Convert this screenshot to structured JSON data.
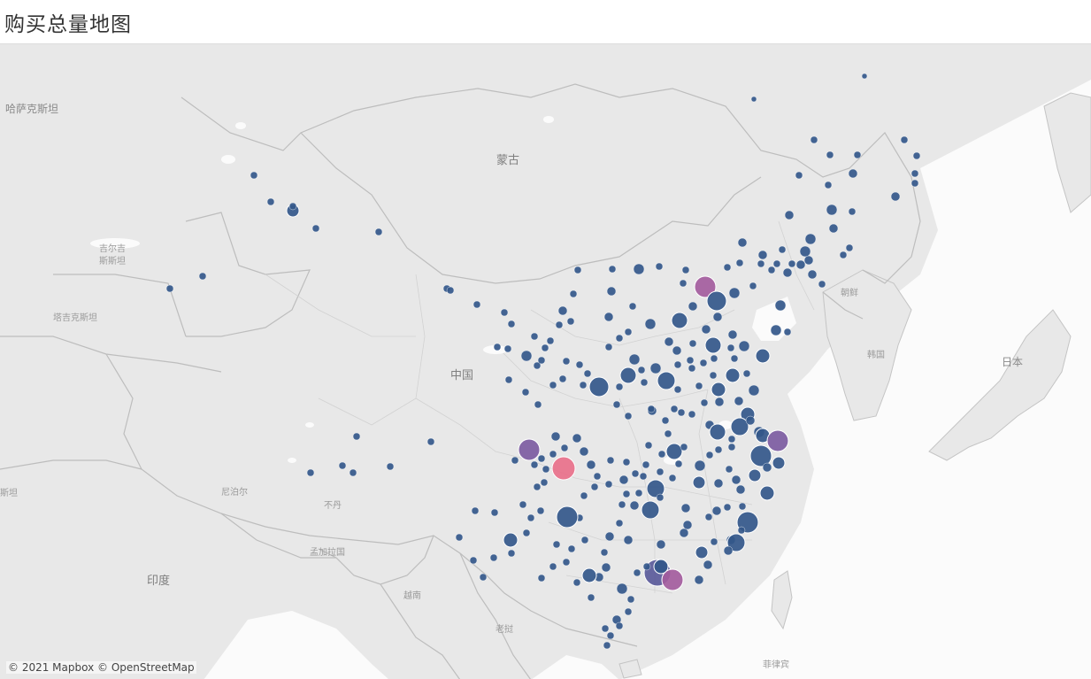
{
  "title": "购买总量地图",
  "attribution": "© 2021 Mapbox © OpenStreetMap",
  "map_labels": {
    "kazakhstan": "哈萨克斯坦",
    "mongolia": "蒙古",
    "china": "中国",
    "kyrgyzstan_1": "吉尔吉",
    "kyrgyzstan_2": "斯斯坦",
    "tajikistan": "塔吉克斯坦",
    "india": "印度",
    "nepal": "尼泊尔",
    "bhutan": "不丹",
    "bangladesh": "孟加拉国",
    "north_korea": "朝鲜",
    "south_korea": "韩国",
    "japan": "日本",
    "vietnam": "越南",
    "laos": "老挝",
    "philippines": "菲律宾",
    "edge_stan": "斯坦"
  },
  "colors": {
    "land": "#e8e8e8",
    "sea": "#fbfbfb",
    "border": "#bcbcbc",
    "dot_low": "#33578a",
    "dot_mid": "#5a5a9a",
    "dot_violet": "#7c5ba1",
    "dot_high": "#a35c9d",
    "dot_max": "#e8708a"
  },
  "legend_scale": [
    "low",
    "mid",
    "violet",
    "high",
    "max"
  ]
}
